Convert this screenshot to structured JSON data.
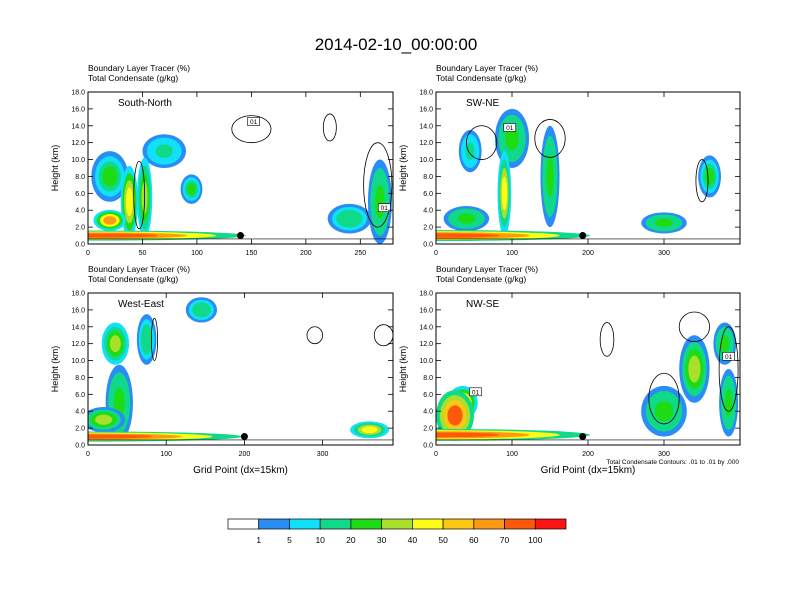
{
  "figure": {
    "title": "2014-02-10_00:00:00",
    "contour_note": "Total Condensate Contours: .01 to .01 by .000",
    "xlabel": "Grid Point (dx=15km)",
    "ylabel": "Height (km)"
  },
  "chart_data": [
    {
      "type": "heatmap",
      "panel_label": "South-North",
      "subtitle_1": "Boundary Layer Tracer    (%)",
      "subtitle_2": "Total Condensate    (g/kg)",
      "ylabel": "Height (km)",
      "xlabel": "",
      "xlim": [
        0,
        280
      ],
      "ylim": [
        0,
        18
      ],
      "xticks": [
        0,
        50,
        100,
        150,
        200,
        250
      ],
      "yticks": [
        0,
        2,
        4,
        6,
        8,
        10,
        12,
        14,
        16,
        18
      ],
      "marker": {
        "x": 140,
        "y": 1.0
      },
      "box_labels": [
        {
          "text": "01",
          "x": 152,
          "y": 14.5
        },
        {
          "text": "01",
          "x": 272,
          "y": 4.3
        }
      ],
      "tracer_blobs": [
        {
          "x": 10,
          "y": 1.0,
          "w": 270,
          "h": 1.2,
          "level": 90
        },
        {
          "x": 38,
          "y": 5.0,
          "w": 16,
          "h": 8.5,
          "level": 45
        },
        {
          "x": 52,
          "y": 5.5,
          "w": 14,
          "h": 9.5,
          "level": 35
        },
        {
          "x": 20,
          "y": 8.0,
          "w": 34,
          "h": 6.0,
          "level": 20
        },
        {
          "x": 70,
          "y": 11.0,
          "w": 40,
          "h": 4.0,
          "level": 12
        },
        {
          "x": 95,
          "y": 6.5,
          "w": 20,
          "h": 3.5,
          "level": 20
        },
        {
          "x": 268,
          "y": 5.0,
          "w": 22,
          "h": 10.0,
          "level": 25
        },
        {
          "x": 240,
          "y": 3.0,
          "w": 40,
          "h": 3.5,
          "level": 18
        },
        {
          "x": 20,
          "y": 2.8,
          "w": 30,
          "h": 2.5,
          "level": 60
        }
      ],
      "contours": [
        {
          "x": 150,
          "y": 13.6,
          "w": 36,
          "h": 3.2
        },
        {
          "x": 222,
          "y": 13.8,
          "w": 12,
          "h": 3.2
        },
        {
          "x": 266,
          "y": 7.0,
          "w": 26,
          "h": 10.0
        },
        {
          "x": 47,
          "y": 5.8,
          "w": 10,
          "h": 8.0
        }
      ]
    },
    {
      "type": "heatmap",
      "panel_label": "SW-NE",
      "subtitle_1": "Boundary Layer Tracer    (%)",
      "subtitle_2": "Total Condensate    (g/kg)",
      "ylabel": "Height (km)",
      "xlabel": "",
      "xlim": [
        0,
        400
      ],
      "ylim": [
        0,
        18
      ],
      "xticks": [
        0,
        100,
        200,
        300
      ],
      "yticks": [
        0,
        2,
        4,
        6,
        8,
        10,
        12,
        14,
        16,
        18
      ],
      "marker": {
        "x": 193,
        "y": 1.0
      },
      "box_labels": [
        {
          "text": "01",
          "x": 97,
          "y": 13.8
        }
      ],
      "tracer_blobs": [
        {
          "x": 5,
          "y": 1.0,
          "w": 395,
          "h": 1.3,
          "level": 90
        },
        {
          "x": 100,
          "y": 12.5,
          "w": 45,
          "h": 7.0,
          "level": 25
        },
        {
          "x": 90,
          "y": 6.0,
          "w": 18,
          "h": 10.0,
          "level": 40
        },
        {
          "x": 150,
          "y": 8.0,
          "w": 25,
          "h": 12.0,
          "level": 25
        },
        {
          "x": 45,
          "y": 11.0,
          "w": 30,
          "h": 5.0,
          "level": 12
        },
        {
          "x": 40,
          "y": 3.0,
          "w": 60,
          "h": 3.0,
          "level": 25
        },
        {
          "x": 360,
          "y": 8.0,
          "w": 30,
          "h": 5.0,
          "level": 20
        },
        {
          "x": 300,
          "y": 2.5,
          "w": 60,
          "h": 2.5,
          "level": 25
        }
      ],
      "contours": [
        {
          "x": 150,
          "y": 12.5,
          "w": 40,
          "h": 4.5
        },
        {
          "x": 60,
          "y": 12.0,
          "w": 40,
          "h": 4.0
        },
        {
          "x": 350,
          "y": 7.5,
          "w": 16,
          "h": 5.0
        }
      ]
    },
    {
      "type": "heatmap",
      "panel_label": "West-East",
      "subtitle_1": "Boundary Layer Tracer    (%)",
      "subtitle_2": "Total Condensate    (g/kg)",
      "ylabel": "Height (km)",
      "xlabel": "Grid Point (dx=15km)",
      "xlim": [
        0,
        390
      ],
      "ylim": [
        0,
        18
      ],
      "xticks": [
        0,
        100,
        200,
        300
      ],
      "yticks": [
        0,
        2,
        4,
        6,
        8,
        10,
        12,
        14,
        16,
        18
      ],
      "marker": {
        "x": 200,
        "y": 1.0
      },
      "box_labels": [],
      "tracer_blobs": [
        {
          "x": 5,
          "y": 1.0,
          "w": 385,
          "h": 1.2,
          "level": 90
        },
        {
          "x": 35,
          "y": 12.0,
          "w": 35,
          "h": 5.0,
          "level": 35
        },
        {
          "x": 40,
          "y": 5.0,
          "w": 35,
          "h": 9.0,
          "level": 25
        },
        {
          "x": 75,
          "y": 12.5,
          "w": 25,
          "h": 6.0,
          "level": 15
        },
        {
          "x": 145,
          "y": 16.0,
          "w": 40,
          "h": 3.0,
          "level": 15
        },
        {
          "x": 20,
          "y": 3.0,
          "w": 55,
          "h": 3.0,
          "level": 30
        },
        {
          "x": 360,
          "y": 1.8,
          "w": 50,
          "h": 2.0,
          "level": 40
        }
      ],
      "contours": [
        {
          "x": 290,
          "y": 13.0,
          "w": 20,
          "h": 2.0
        },
        {
          "x": 378,
          "y": 13.0,
          "w": 24,
          "h": 2.5
        },
        {
          "x": 85,
          "y": 12.5,
          "w": 8,
          "h": 5.0
        }
      ]
    },
    {
      "type": "heatmap",
      "panel_label": "NW-SE",
      "subtitle_1": "Boundary Layer Tracer    (%)",
      "subtitle_2": "Total Condensate    (g/kg)",
      "ylabel": "Height (km)",
      "xlabel": "Grid Point (dx=15km)",
      "xlim": [
        0,
        400
      ],
      "ylim": [
        0,
        18
      ],
      "xticks": [
        0,
        100,
        200,
        300
      ],
      "yticks": [
        0,
        2,
        4,
        6,
        8,
        10,
        12,
        14,
        16,
        18
      ],
      "marker": {
        "x": 193,
        "y": 1.0
      },
      "box_labels": [
        {
          "text": "01",
          "x": 52,
          "y": 6.3
        },
        {
          "text": "01",
          "x": 385,
          "y": 10.5
        }
      ],
      "tracer_blobs": [
        {
          "x": 5,
          "y": 1.2,
          "w": 395,
          "h": 1.4,
          "level": 90
        },
        {
          "x": 25,
          "y": 3.5,
          "w": 50,
          "h": 6.0,
          "level": 75
        },
        {
          "x": 35,
          "y": 5.0,
          "w": 40,
          "h": 4.0,
          "level": 55
        },
        {
          "x": 300,
          "y": 4.0,
          "w": 60,
          "h": 6.0,
          "level": 25
        },
        {
          "x": 340,
          "y": 9.0,
          "w": 40,
          "h": 8.0,
          "level": 30
        },
        {
          "x": 380,
          "y": 12.0,
          "w": 30,
          "h": 5.0,
          "level": 25
        },
        {
          "x": 385,
          "y": 5.0,
          "w": 25,
          "h": 8.0,
          "level": 25
        }
      ],
      "contours": [
        {
          "x": 225,
          "y": 12.5,
          "w": 18,
          "h": 4.0
        },
        {
          "x": 340,
          "y": 14.0,
          "w": 40,
          "h": 3.5
        },
        {
          "x": 385,
          "y": 9.0,
          "w": 25,
          "h": 10.0
        },
        {
          "x": 300,
          "y": 5.5,
          "w": 40,
          "h": 6.0
        }
      ]
    }
  ],
  "colorbar": {
    "labels": [
      "1",
      "5",
      "10",
      "20",
      "30",
      "40",
      "50",
      "60",
      "70",
      "100"
    ],
    "colors": [
      "#ffffff",
      "#2a8cf5",
      "#10e0fa",
      "#10d98a",
      "#1edc14",
      "#a8e02c",
      "#fcfc14",
      "#fcc814",
      "#fc9a14",
      "#fc5a0a",
      "#ff1414"
    ]
  }
}
